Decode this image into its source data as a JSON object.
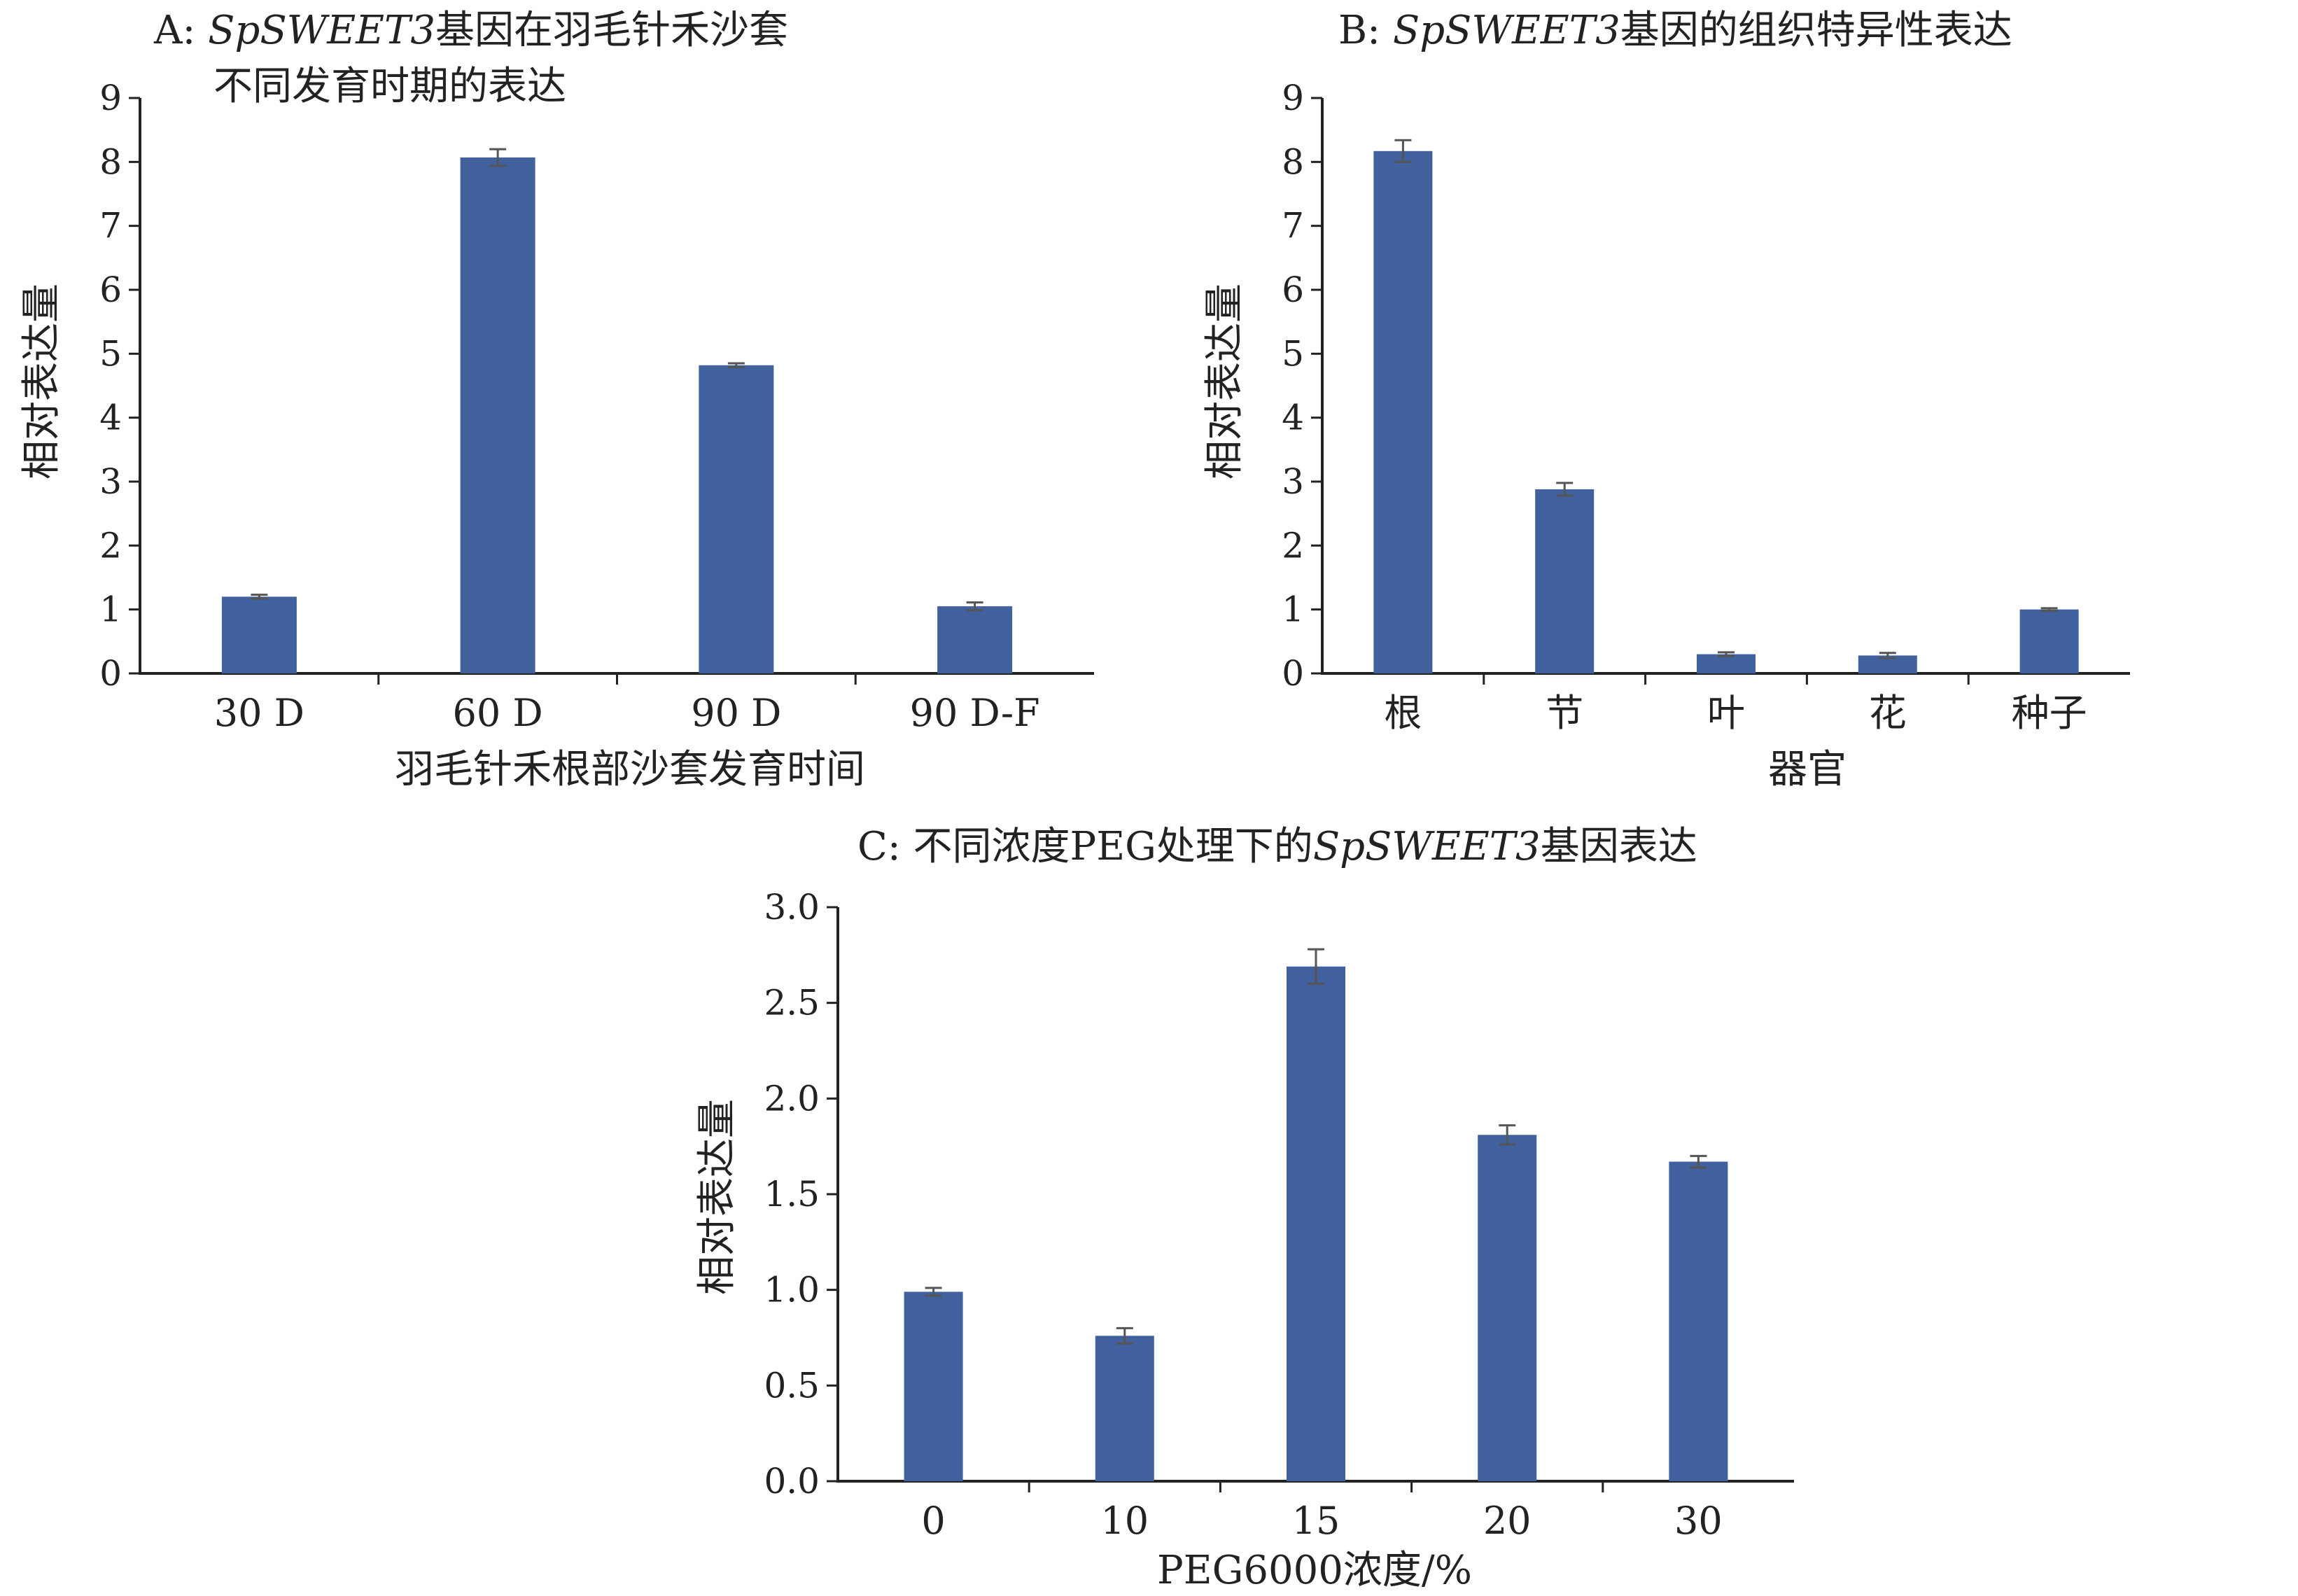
{
  "chart_data": [
    {
      "id": "A",
      "type": "bar",
      "title": {
        "prefix": "A: ",
        "gene": "SpSWEET3",
        "suffix_line1": "基因在羽毛针禾沙套",
        "line2": "不同发育时期的表达"
      },
      "xlabel": "羽毛针禾根部沙套发育时间",
      "ylabel": "相对表达量",
      "categories": [
        "30 D",
        "60 D",
        "90 D",
        "90 D-F"
      ],
      "values": [
        1.2,
        8.07,
        4.82,
        1.05
      ],
      "errors": [
        0.03,
        0.13,
        0.03,
        0.06
      ],
      "ylim": [
        0,
        9
      ],
      "yticks": [
        "0",
        "1",
        "2",
        "3",
        "4",
        "5",
        "6",
        "7",
        "8",
        "9"
      ],
      "ytick_values": [
        0,
        1,
        2,
        3,
        4,
        5,
        6,
        7,
        8,
        9
      ],
      "bar_color": "#41609e",
      "grid": false,
      "legend": "none"
    },
    {
      "id": "B",
      "type": "bar",
      "title": {
        "prefix": "B: ",
        "gene": "SpSWEET3",
        "suffix_line1": "基因的组织特异性表达",
        "line2": ""
      },
      "xlabel": "器官",
      "ylabel": "相对表达量",
      "categories": [
        "根",
        "节",
        "叶",
        "花",
        "种子"
      ],
      "values": [
        8.17,
        2.88,
        0.3,
        0.28,
        1.0
      ],
      "errors": [
        0.17,
        0.1,
        0.03,
        0.04,
        0.02
      ],
      "ylim": [
        0,
        9
      ],
      "yticks": [
        "0",
        "1",
        "2",
        "3",
        "4",
        "5",
        "6",
        "7",
        "8",
        "9"
      ],
      "ytick_values": [
        0,
        1,
        2,
        3,
        4,
        5,
        6,
        7,
        8,
        9
      ],
      "bar_color": "#41609e",
      "grid": false,
      "legend": "none"
    },
    {
      "id": "C",
      "type": "bar",
      "title": {
        "prefix": "C: 不同浓度PEG处理下的",
        "gene": "SpSWEET3",
        "suffix_line1": "基因表达",
        "line2": ""
      },
      "xlabel": "PEG6000浓度/%",
      "ylabel": "相对表达量",
      "categories": [
        "0",
        "10",
        "15",
        "20",
        "30"
      ],
      "values": [
        0.99,
        0.76,
        2.69,
        1.81,
        1.67
      ],
      "errors": [
        0.02,
        0.04,
        0.09,
        0.05,
        0.03
      ],
      "ylim": [
        0,
        3.0
      ],
      "yticks": [
        "0.0",
        "0.5",
        "1.0",
        "1.5",
        "2.0",
        "2.5",
        "3.0"
      ],
      "ytick_values": [
        0,
        0.5,
        1.0,
        1.5,
        2.0,
        2.5,
        3.0
      ],
      "bar_color": "#41609e",
      "grid": false,
      "legend": "none"
    }
  ]
}
